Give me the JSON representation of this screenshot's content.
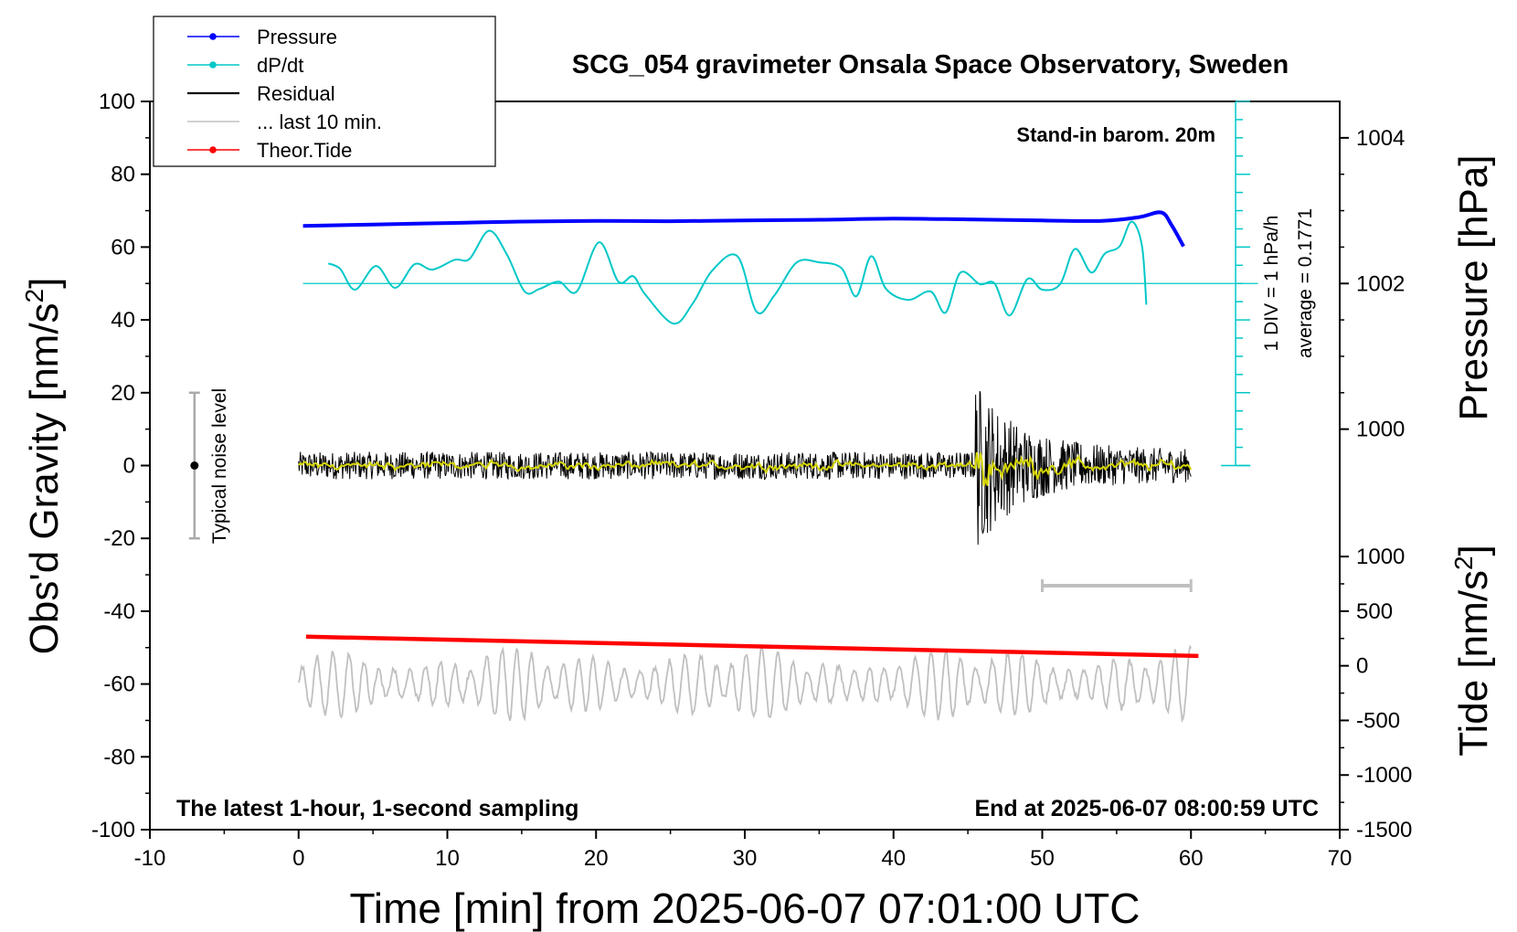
{
  "chart_data": {
    "type": "line",
    "title": "SCG_054 gravimeter Onsala Space Observatory, Sweden",
    "xlabel": "Time [min] from 2025-06-07 07:01:00 UTC",
    "ylabel_left_main": "Obs'd Gravity [nm/s",
    "ylabel_left_sup": "2",
    "ylabel_left_end": "]",
    "ylabel_right_top": "Pressure [hPa]",
    "ylabel_right_bottom_main": "Tide [nm/s",
    "ylabel_right_bottom_sup": "2",
    "ylabel_right_bottom_end": "]",
    "xlim": [
      -10,
      70
    ],
    "ylim": [
      -100,
      100
    ],
    "x_ticks": [
      -10,
      0,
      10,
      20,
      30,
      40,
      50,
      60,
      70
    ],
    "y_ticks": [
      -100,
      -80,
      -60,
      -40,
      -20,
      0,
      20,
      40,
      60,
      80,
      100
    ],
    "pressure_axis": {
      "ticks": [
        1004,
        1002,
        1000
      ],
      "hpa_per_nm": 0.05,
      "ref": [
        50,
        1002
      ]
    },
    "tide_axis": {
      "ticks": [
        1000,
        500,
        0,
        -500,
        -1000,
        -1500
      ],
      "tide_per_nm": 33.33,
      "ref": [
        -100,
        -1500
      ]
    },
    "legend": [
      {
        "label": "Pressure",
        "color": "#0000ff",
        "marker": true
      },
      {
        "label": "dP/dt",
        "color": "#00c8c8",
        "marker": true
      },
      {
        "label": "Residual",
        "color": "#000000",
        "marker": false
      },
      {
        "label": "... last 10 min.",
        "color": "#c0c0c0",
        "marker": false
      },
      {
        "label": "Theor.Tide",
        "color": "#ff0000",
        "marker": true
      }
    ],
    "annotations": {
      "barometer": "Stand-in barom. 20m",
      "latest": "The latest 1-hour, 1-second sampling",
      "end": "End at 2025-06-07 08:00:59 UTC",
      "noise": "Typical noise level",
      "div": "1 DIV = 1 hPa/h",
      "average": "average = 0.1771"
    },
    "series": {
      "pressure": {
        "name": "Pressure",
        "color": "#0000ff",
        "x": [
          0.3,
          5,
          10,
          15,
          20,
          25,
          30,
          35,
          40,
          45,
          50,
          54,
          56.5,
          58,
          58.7,
          59.5
        ],
        "y": [
          65.8,
          66.2,
          66.6,
          67,
          67.2,
          67.1,
          67.3,
          67.5,
          67.8,
          67.6,
          67.3,
          67.2,
          68.2,
          69.5,
          66,
          60.2
        ]
      },
      "dpdt": {
        "name": "dP/dt",
        "color": "#00c8c8",
        "baseline": 50,
        "x": [
          2,
          2.8,
          3.8,
          5.2,
          6.5,
          7.8,
          9,
          10.5,
          11.5,
          12.8,
          14,
          15.2,
          16.2,
          17.5,
          18.7,
          20.2,
          21.5,
          22.5,
          23.3,
          25.2,
          26.5,
          27.8,
          29.5,
          30.8,
          32,
          33.5,
          35,
          36.5,
          37.5,
          38.5,
          39.5,
          41,
          42.5,
          43.5,
          44.5,
          45.8,
          46.8,
          47.8,
          49,
          50,
          51.2,
          52.2,
          53.3,
          54.2,
          55.2,
          56,
          56.7,
          57
        ],
        "y": [
          55.5,
          54,
          48.3,
          54.8,
          48.8,
          55.3,
          53.8,
          56.5,
          56.8,
          64.5,
          58,
          47.8,
          48.5,
          50.5,
          47.8,
          61.3,
          50.5,
          52,
          47,
          39,
          44.5,
          53.5,
          57.5,
          42.2,
          46.8,
          55.8,
          55.8,
          54.2,
          46.5,
          57.5,
          48.5,
          45.5,
          47.8,
          42,
          53,
          49.8,
          50,
          41.2,
          51.2,
          48.3,
          49.8,
          59.5,
          53,
          58.2,
          60.2,
          67,
          60.5,
          44.2
        ]
      },
      "residual": {
        "name": "Residual",
        "color": "#000000",
        "x_start": 0,
        "x_end": 60,
        "quake_start": 45.5,
        "quake_peak": 22
      },
      "last10": {
        "name": "... last 10 min.",
        "color": "#c0c0c0",
        "x_start": 0,
        "x_end": 60,
        "center": -60,
        "amplitude": 10
      },
      "tide": {
        "name": "Theor.Tide",
        "color": "#ff0000",
        "x": [
          0.5,
          60.5
        ],
        "y": [
          -47,
          -52.3
        ]
      },
      "noise_bar": {
        "x": -7,
        "y": [
          -20,
          20
        ],
        "center": 0
      },
      "last10_bar": {
        "x": [
          50,
          60
        ],
        "y": -33
      },
      "dpdt_scale": {
        "x": 63,
        "y": [
          0,
          100
        ],
        "ticks": 21
      }
    }
  }
}
